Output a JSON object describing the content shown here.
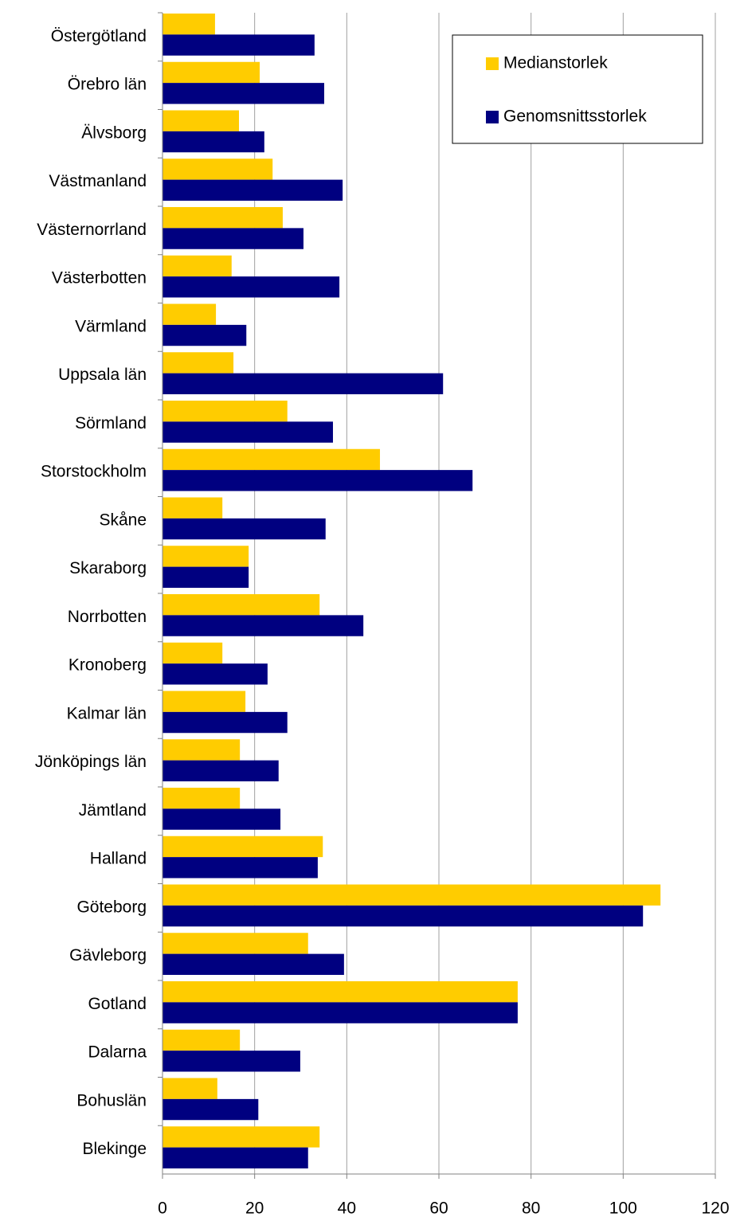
{
  "chart_data": {
    "type": "bar",
    "orientation": "horizontal",
    "categories": [
      "Östergötland",
      "Örebro län",
      "Älvsborg",
      "Västmanland",
      "Västernorrland",
      "Västerbotten",
      "Värmland",
      "Uppsala län",
      "Sörmland",
      "Storstockholm",
      "Skåne",
      "Skaraborg",
      "Norrbotten",
      "Kronoberg",
      "Kalmar län",
      "Jönköpings län",
      "Jämtland",
      "Halland",
      "Göteborg",
      "Gävleborg",
      "Gotland",
      "Dalarna",
      "Bohuslän",
      "Blekinge"
    ],
    "series": [
      {
        "name": "Medianstorlek",
        "color": "#ffcc00",
        "values": [
          11.4,
          21.1,
          16.6,
          23.9,
          26.1,
          15.0,
          11.6,
          15.4,
          27.1,
          47.2,
          13.0,
          18.7,
          34.1,
          13.0,
          18.0,
          16.8,
          16.8,
          34.8,
          108.1,
          31.6,
          77.1,
          16.8,
          11.9,
          34.1
        ]
      },
      {
        "name": "Genomsnittsstorlek",
        "color": "#000080",
        "values": [
          33.0,
          35.1,
          22.1,
          39.1,
          30.6,
          38.4,
          18.2,
          60.9,
          37.0,
          67.3,
          35.4,
          18.7,
          43.6,
          22.8,
          27.1,
          25.2,
          25.6,
          33.7,
          104.3,
          39.4,
          77.1,
          29.9,
          20.8,
          31.6
        ]
      }
    ],
    "xlim": [
      0,
      120
    ],
    "xticks": [
      0,
      20,
      40,
      60,
      80,
      100,
      120
    ],
    "grid": true,
    "legend": "upper right"
  }
}
